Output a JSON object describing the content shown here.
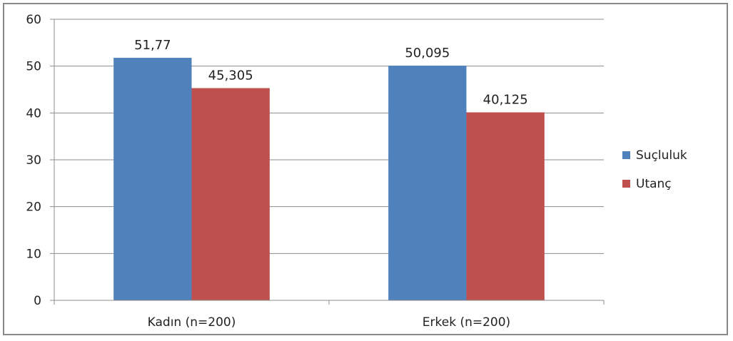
{
  "chart_data": {
    "type": "bar",
    "categories": [
      "Kadın (n=200)",
      "Erkek (n=200)"
    ],
    "series": [
      {
        "name": "Suçluluk",
        "color": "#4F81BD",
        "values": [
          51.77,
          50.095
        ],
        "labels": [
          "51,77",
          "50,095"
        ]
      },
      {
        "name": "Utanç",
        "color": "#C0504D",
        "values": [
          45.305,
          40.125
        ],
        "labels": [
          "45,305",
          "40,125"
        ]
      }
    ],
    "title": "",
    "xlabel": "",
    "ylabel": "",
    "ylim": [
      0,
      60
    ],
    "yticks": [
      0,
      10,
      20,
      30,
      40,
      50,
      60
    ],
    "grid": true,
    "legend_position": "right"
  }
}
